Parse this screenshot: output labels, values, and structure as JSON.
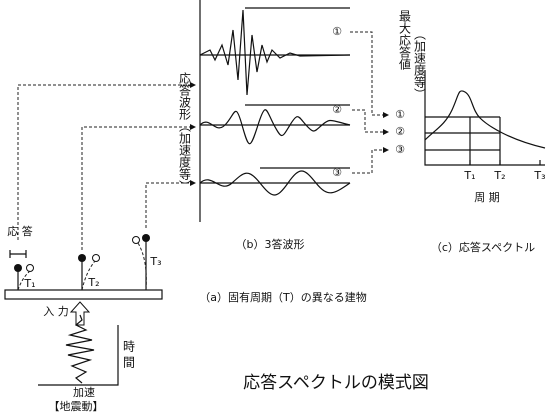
{
  "title": "応答スペクトルの模式図",
  "buildings": {
    "response_label": "応 答",
    "labels": [
      "T₁",
      "T₂",
      "T₃"
    ],
    "input": "入 力",
    "caption": "（a）固有周期（T）の異なる建物"
  },
  "ground_motion": {
    "time": "時 間",
    "accel": "加速",
    "label": "【地震動】"
  },
  "waveforms": {
    "axis_label": "応答波形（加速度等）",
    "markers": [
      "①",
      "②",
      "③"
    ],
    "caption": "（b）3答波形"
  },
  "spectrum": {
    "y_label": "最大応答値",
    "y_sub": "（加速度等）",
    "markers": [
      "①",
      "②",
      "③"
    ],
    "ticks": [
      "T₁",
      "T₂",
      "T₃"
    ],
    "x_label": "周 期",
    "caption": "（c）応答スペクトル"
  }
}
